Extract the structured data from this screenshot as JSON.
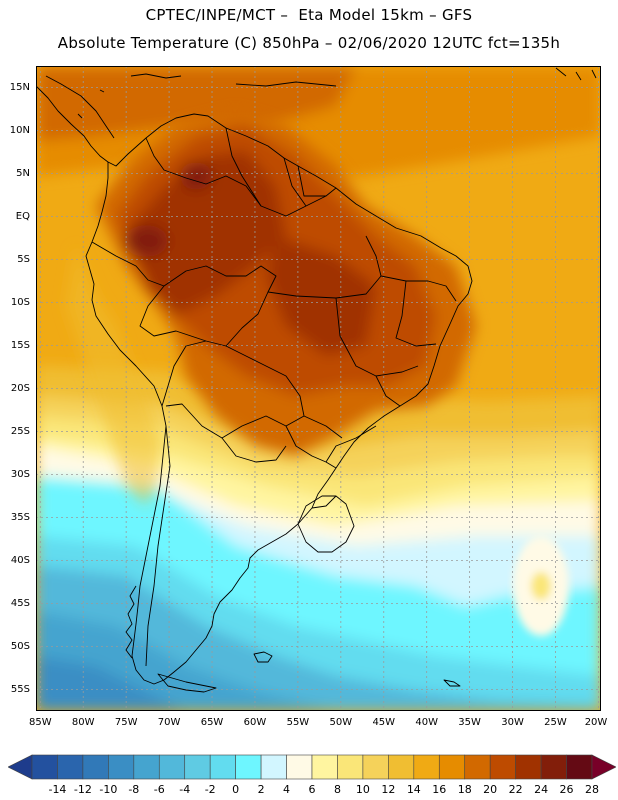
{
  "header": {
    "line1": "CPTEC/INPE/MCT –  Eta Model 15km – GFS",
    "line2": "Absolute Temperature (C) 850hPa – 02/06/2020 12UTC fct=135h"
  },
  "map": {
    "lat_labels": [
      "15N",
      "10N",
      "5N",
      "EQ",
      "5S",
      "10S",
      "15S",
      "20S",
      "25S",
      "30S",
      "35S",
      "40S",
      "45S",
      "50S",
      "55S"
    ],
    "lat_values": [
      15,
      10,
      5,
      0,
      -5,
      -10,
      -15,
      -20,
      -25,
      -30,
      -35,
      -40,
      -45,
      -50,
      -55
    ],
    "lon_labels": [
      "85W",
      "80W",
      "75W",
      "70W",
      "65W",
      "60W",
      "55W",
      "50W",
      "45W",
      "40W",
      "35W",
      "30W",
      "25W",
      "20W"
    ],
    "lon_values": [
      -85,
      -80,
      -75,
      -70,
      -65,
      -60,
      -55,
      -50,
      -45,
      -40,
      -35,
      -30,
      -25,
      -20
    ],
    "extent": {
      "lon_min": -85.5,
      "lon_max": -19.7,
      "lat_min": -57.5,
      "lat_max": 17.5
    }
  },
  "colorbar": {
    "labels": [
      "-14",
      "-12",
      "-10",
      "-8",
      "-6",
      "-4",
      "-2",
      "0",
      "2",
      "4",
      "6",
      "8",
      "10",
      "12",
      "14",
      "16",
      "18",
      "20",
      "22",
      "24",
      "26",
      "28"
    ],
    "colors": [
      "#1e3c8c",
      "#23519f",
      "#2a65ad",
      "#3179b8",
      "#3a8ec4",
      "#45a4cf",
      "#52b8da",
      "#5fcbe3",
      "#62dcef",
      "#6ef6ff",
      "#d2f6ff",
      "#fffae6",
      "#fff5a0",
      "#fae678",
      "#f5d25a",
      "#f0be32",
      "#f0aa14",
      "#e68c00",
      "#d26900",
      "#be4b00",
      "#a03200",
      "#821e0a",
      "#640a14",
      "#780028"
    ]
  }
}
